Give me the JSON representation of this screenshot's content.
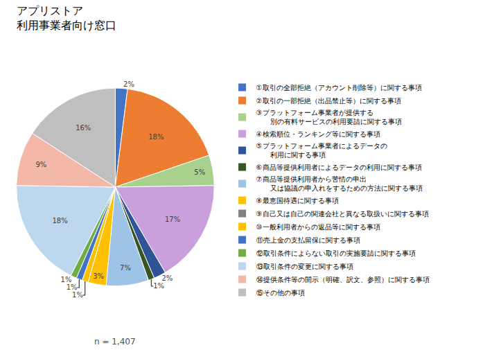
{
  "chart_data": {
    "type": "pie",
    "title": "アプリストア\n利用事業者向け窓口",
    "categories": [
      "①取引の全部拒絶（アカウント削除等）に関する事項",
      "②取引の一部拒絶（出品禁止等）に関する事項",
      "③プラットフォーム事業者が提供する\n　　別の有料サービスの利用要請に関する事項",
      "④検索順位・ランキング等に関する事項",
      "⑤プラットフォーム事業者によるデータの\n　　利用に関する事項",
      "⑥商品等提供利用者によるデータの利用に関する事項",
      "⑦商品等提供利用者から苦情の申出\n　　又は協議の申入れをするための方法に関する事項",
      "⑧最恵国待遇に関する事項",
      "⑨自己又は自己の関連会社と異なる取扱いに関する事項",
      "⑩一般利用者からの返品等に関する事項",
      "⑪売上金の支払留保に関する事項",
      "⑫取引条件によらない取引の実施要請に関する事項",
      "⑬取引条件の変更に関する事項",
      "⑭提供条件等の開示（明確、訳文、参照）に関する事項",
      "⑮その他の事項"
    ],
    "values": [
      2,
      18,
      5,
      17,
      2,
      1,
      7,
      3,
      0,
      1,
      1,
      1,
      18,
      9,
      16
    ],
    "value_labels": [
      "2%",
      "18%",
      "5%",
      "17%",
      "2%",
      "1%",
      "7%",
      "3%",
      null,
      "1%",
      "1%",
      "1%",
      "18%",
      "9%",
      "16%"
    ],
    "data_labels": true,
    "colors": [
      "#4472C4",
      "#ED7D31",
      "#A9D18E",
      "#C9A0DC",
      "#2F5496",
      "#375623",
      "#9DC3E6",
      "#FFC000",
      "#808080",
      "#FFC000",
      "#4472C4",
      "#70AD47",
      "#BDD7EE",
      "#F4B8A8",
      "#BFBFBF"
    ],
    "legend": "right",
    "annotations": [
      "n = 1,407"
    ]
  }
}
